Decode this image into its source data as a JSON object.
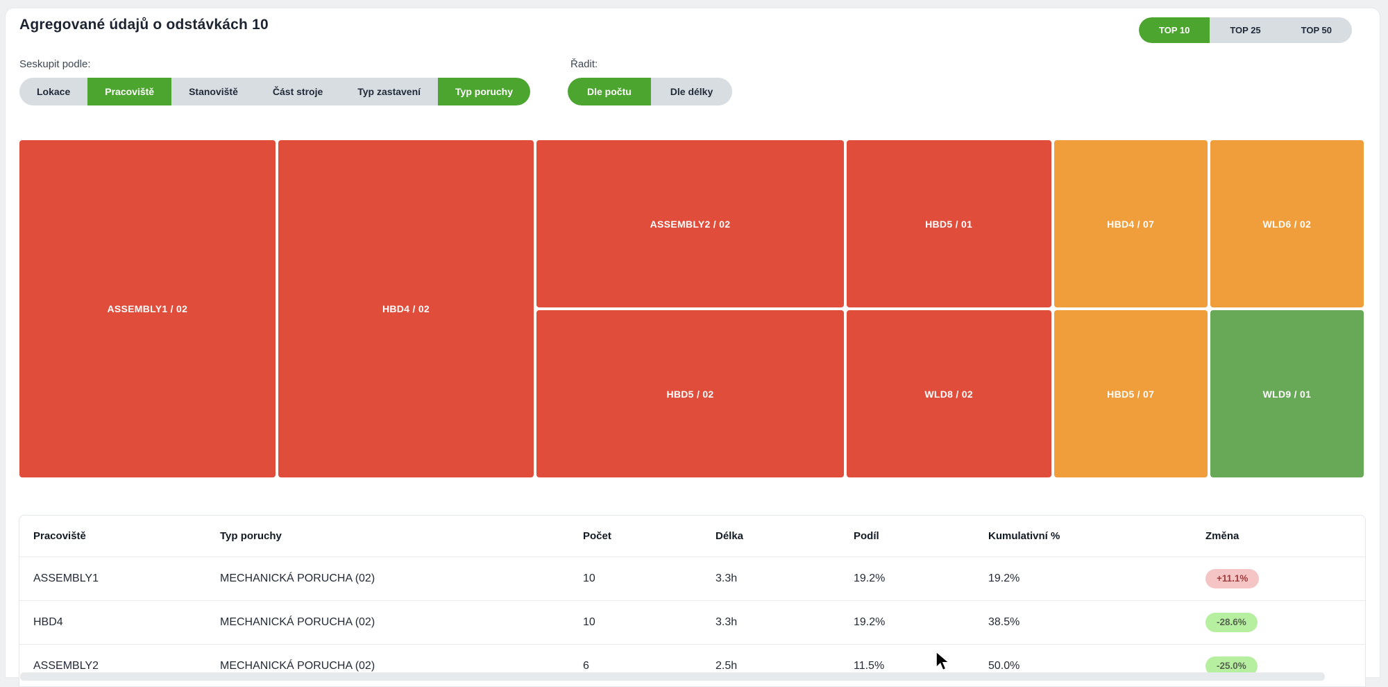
{
  "header": {
    "title": "Agregované údajů o odstávkách 10"
  },
  "top_n": {
    "options": [
      {
        "label": "TOP 10",
        "selected": true
      },
      {
        "label": "TOP 25",
        "selected": false
      },
      {
        "label": "TOP 50",
        "selected": false
      }
    ]
  },
  "group_by": {
    "label": "Seskupit podle:",
    "options": [
      {
        "label": "Lokace",
        "selected": false
      },
      {
        "label": "Pracoviště",
        "selected": true
      },
      {
        "label": "Stanoviště",
        "selected": false
      },
      {
        "label": "Část stroje",
        "selected": false
      },
      {
        "label": "Typ zastavení",
        "selected": false
      },
      {
        "label": "Typ poruchy",
        "selected": true
      }
    ]
  },
  "sort": {
    "label": "Řadit:",
    "options": [
      {
        "label": "Dle počtu",
        "selected": true
      },
      {
        "label": "Dle délky",
        "selected": false
      }
    ]
  },
  "treemap": {
    "type": "treemap",
    "note": "tile area proportional to count; first two tiles span full height",
    "tiles": [
      {
        "label": "ASSEMBLY1 / 02",
        "color": "red",
        "count": 10,
        "span_full_height": true
      },
      {
        "label": "HBD4 / 02",
        "color": "red",
        "count": 10,
        "span_full_height": true
      },
      {
        "label": "ASSEMBLY2 / 02",
        "color": "red",
        "count": 6,
        "row": "top"
      },
      {
        "label": "HBD5 / 01",
        "color": "red",
        "count": 4,
        "row": "top"
      },
      {
        "label": "HBD4 / 07",
        "color": "orange",
        "count": 3,
        "row": "top"
      },
      {
        "label": "WLD6 / 02",
        "color": "orange",
        "count": 3,
        "row": "top"
      },
      {
        "label": "HBD5 / 02",
        "color": "red",
        "count": 6,
        "row": "bottom"
      },
      {
        "label": "WLD8 / 02",
        "color": "red",
        "count": 4,
        "row": "bottom"
      },
      {
        "label": "HBD5 / 07",
        "color": "orange",
        "count": 3,
        "row": "bottom"
      },
      {
        "label": "WLD9 / 01",
        "color": "green",
        "count": 3,
        "row": "bottom"
      }
    ]
  },
  "table": {
    "columns": [
      "Pracoviště",
      "Typ poruchy",
      "Počet",
      "Délka",
      "Podíl",
      "Kumulativní %",
      "Změna"
    ],
    "rows": [
      {
        "cells": [
          "ASSEMBLY1",
          "MECHANICKÁ PORUCHA (02)",
          "10",
          "3.3h",
          "19.2%",
          "19.2%"
        ],
        "change": {
          "text": "+11.1%",
          "direction": "up"
        }
      },
      {
        "cells": [
          "HBD4",
          "MECHANICKÁ PORUCHA (02)",
          "10",
          "3.3h",
          "19.2%",
          "38.5%"
        ],
        "change": {
          "text": "-28.6%",
          "direction": "down"
        }
      },
      {
        "cells": [
          "ASSEMBLY2",
          "MECHANICKÁ PORUCHA (02)",
          "6",
          "2.5h",
          "11.5%",
          "50.0%"
        ],
        "change": {
          "text": "-25.0%",
          "direction": "down"
        }
      }
    ]
  },
  "colors": {
    "accent_green": "#4ca52f",
    "control_gray": "#d8dde2",
    "tile_red": "#e04d3b",
    "tile_orange": "#f09d3b",
    "tile_green": "#68a958",
    "badge_up_bg": "#f5c5c5",
    "badge_up_text": "#a03d3d",
    "badge_down_bg": "#b6ef9f",
    "badge_down_text": "#55634f"
  }
}
